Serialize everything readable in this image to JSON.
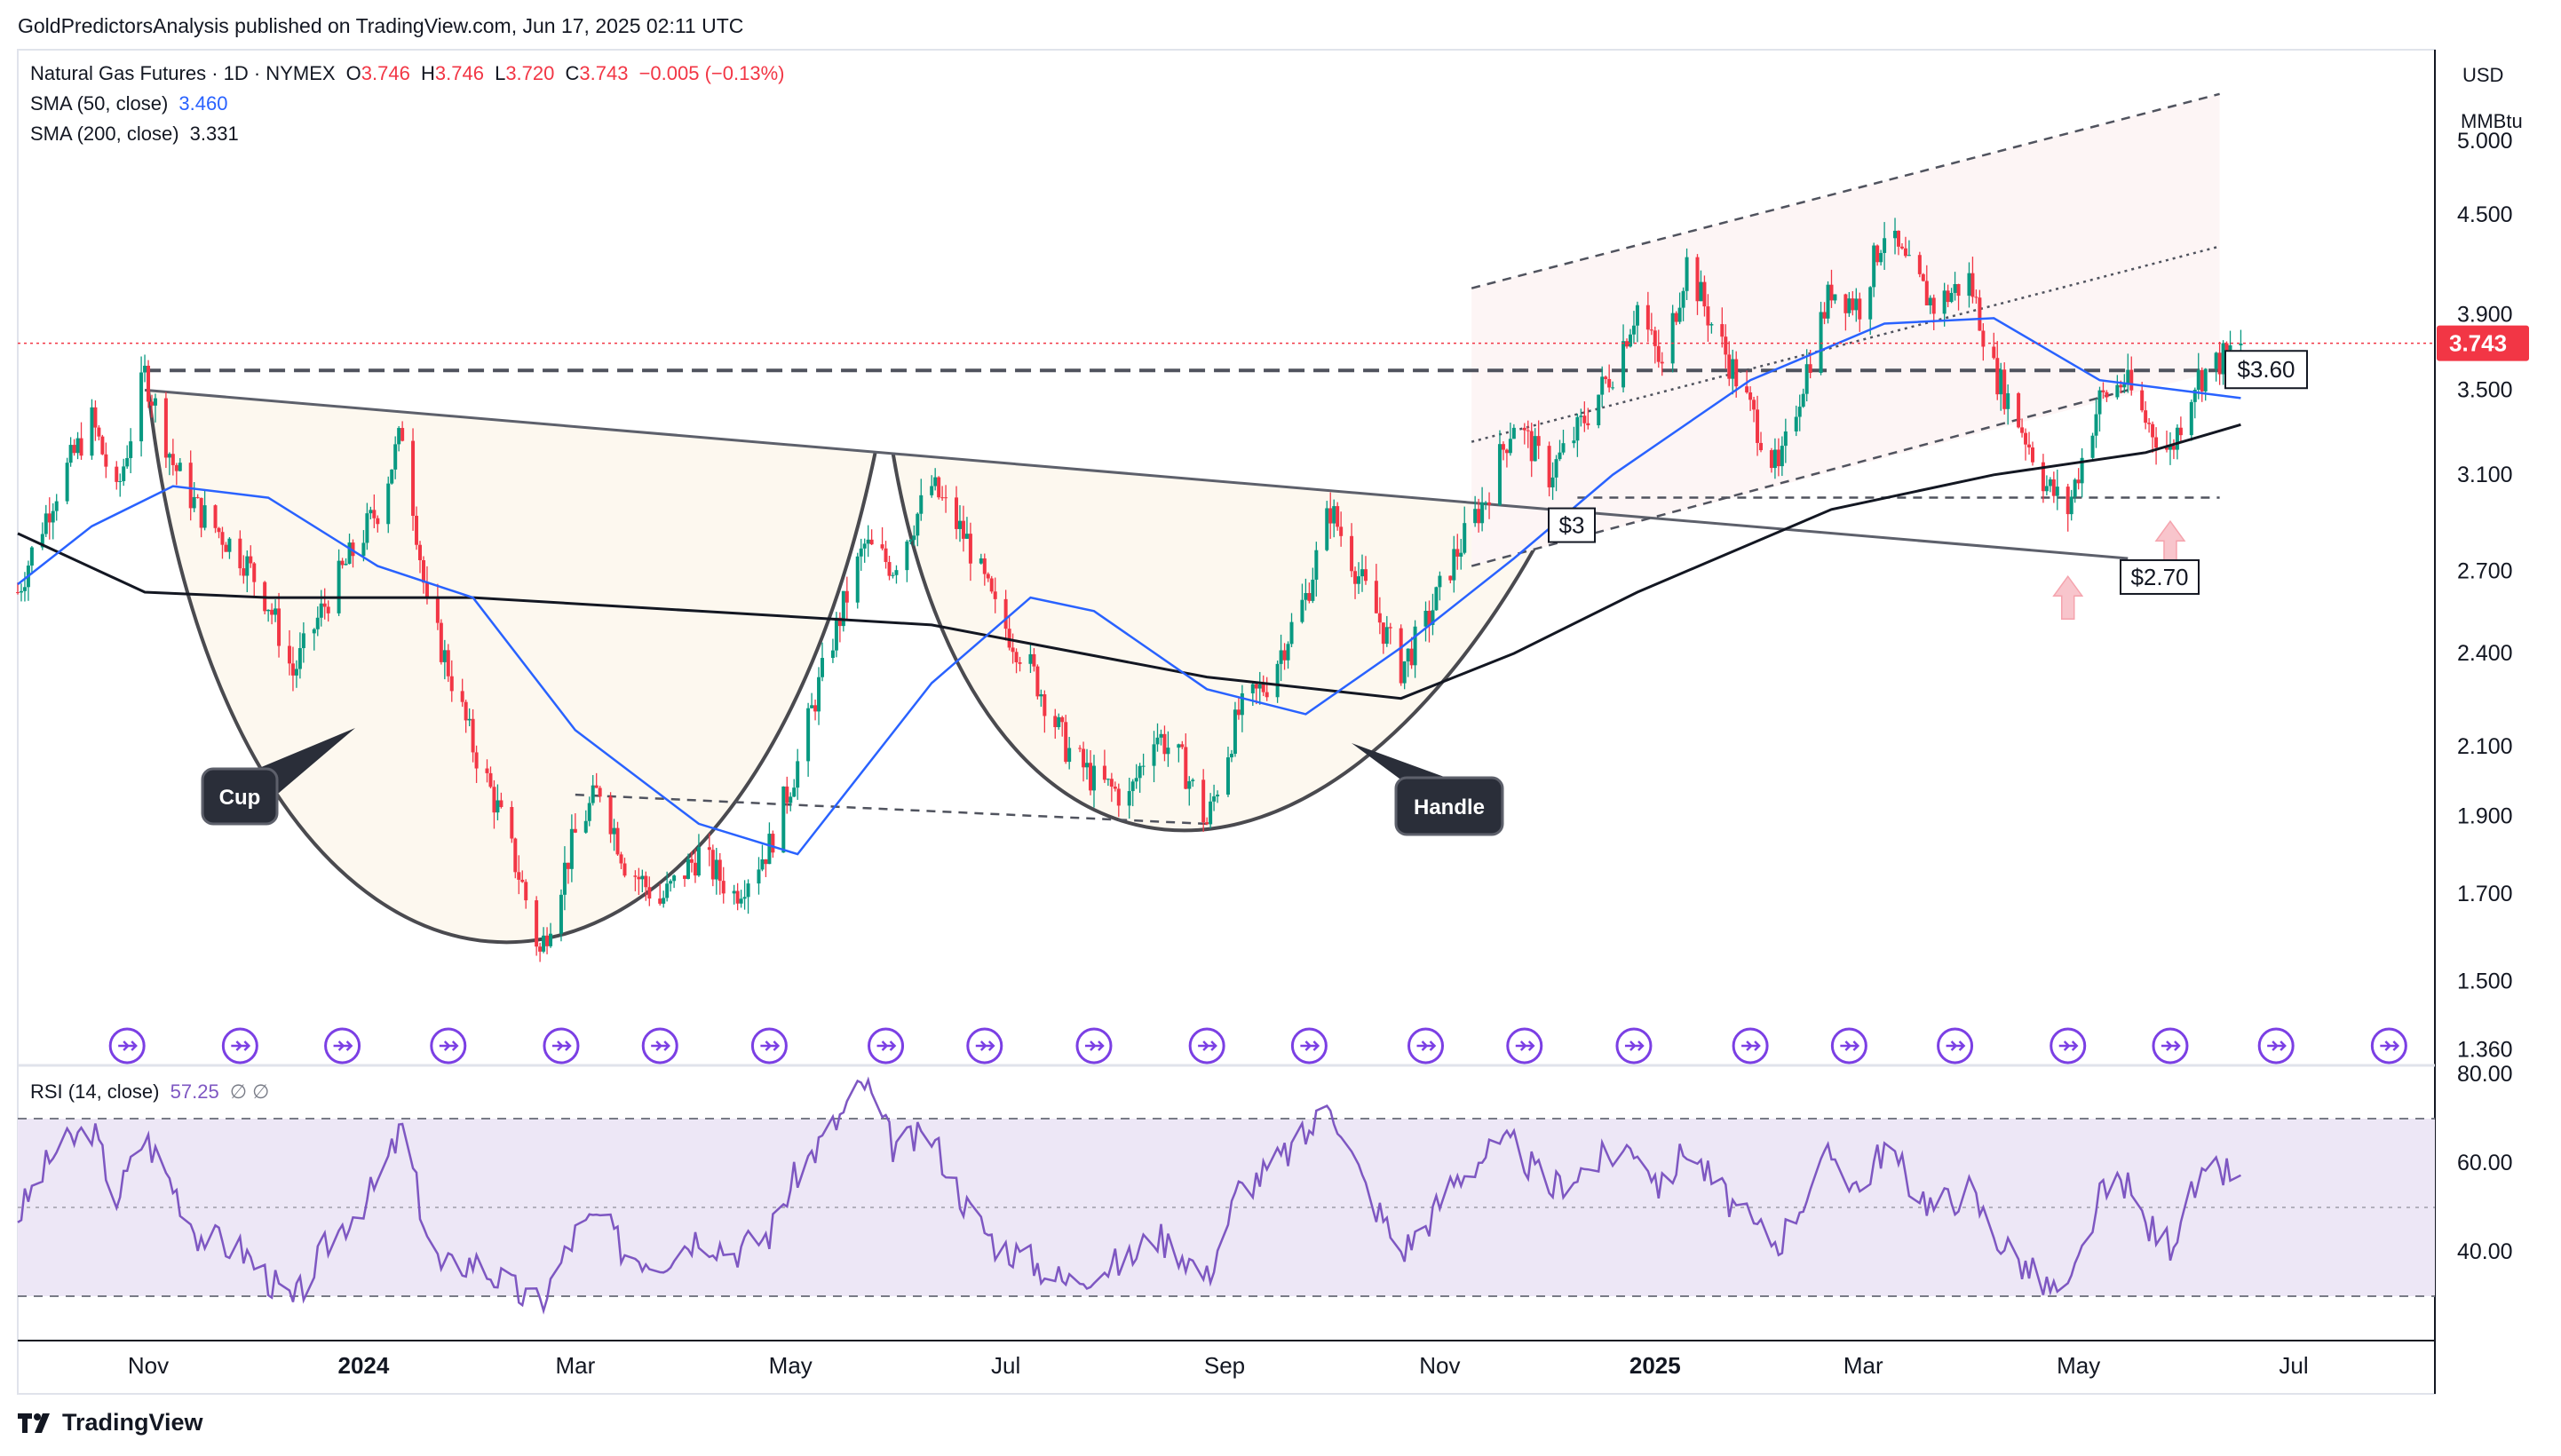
{
  "header": {
    "published": "GoldPredictorsAnalysis published on TradingView.com, Jun 17, 2025 02:11 UTC"
  },
  "legend": {
    "symbol": "Natural Gas Futures · 1D · NYMEX",
    "o_label": "O",
    "o": "3.746",
    "h_label": "H",
    "h": "3.746",
    "l_label": "L",
    "l": "3.720",
    "c_label": "C",
    "c": "3.743",
    "change": "−0.005 (−0.13%)",
    "sma50_label": "SMA (50, close)",
    "sma50": "3.460",
    "sma200_label": "SMA (200, close)",
    "sma200": "3.331",
    "rsi_label": "RSI (14, close)",
    "rsi": "57.25",
    "rsi_extra": "∅  ∅"
  },
  "price_axis": {
    "currency": "USD",
    "unit": "MMBtu",
    "ticks": [
      "5.000",
      "4.500",
      "3.900",
      "3.500",
      "3.100",
      "2.700",
      "2.400",
      "2.100",
      "1.900",
      "1.700",
      "1.500",
      "1.360"
    ],
    "last_price": "3.743"
  },
  "rsi_axis": {
    "ticks": [
      "80.00",
      "60.00",
      "40.00"
    ]
  },
  "time_axis": {
    "labels": [
      "Nov",
      "2024",
      "Mar",
      "May",
      "Jul",
      "Sep",
      "Nov",
      "2025",
      "Mar",
      "May",
      "Jul"
    ]
  },
  "annotations": {
    "cup": "Cup",
    "handle": "Handle",
    "level_360": "$3.60",
    "level_3": "$3",
    "level_270": "$2.70"
  },
  "footer": {
    "brand": "TradingView"
  },
  "colors": {
    "up": "#089981",
    "down": "#f23645",
    "sma50": "#2962ff",
    "sma200": "#131722",
    "rsi": "#7e57c2",
    "rsi_band": "#ede7f6",
    "last_price": "#f23645",
    "cup_fill": "#fdf8ef"
  },
  "chart_data": [
    {
      "type": "candlestick",
      "title": "Natural Gas Futures · 1D · NYMEX",
      "y_scale": "log",
      "ylim": [
        1.33,
        5.7
      ],
      "x_range": [
        "2023-09-25",
        "2025-08-10"
      ],
      "close_path": [
        [
          "2023-09-25",
          2.62
        ],
        [
          "2023-10-05",
          3.0
        ],
        [
          "2023-10-16",
          3.35
        ],
        [
          "2023-10-23",
          3.0
        ],
        [
          "2023-10-31",
          3.58
        ],
        [
          "2023-11-08",
          3.15
        ],
        [
          "2023-11-15",
          2.95
        ],
        [
          "2023-11-28",
          2.75
        ],
        [
          "2023-12-05",
          2.58
        ],
        [
          "2023-12-12",
          2.33
        ],
        [
          "2023-12-22",
          2.6
        ],
        [
          "2024-01-05",
          2.95
        ],
        [
          "2024-01-12",
          3.3
        ],
        [
          "2024-01-19",
          2.55
        ],
        [
          "2024-01-23",
          2.42
        ],
        [
          "2024-02-01",
          2.1
        ],
        [
          "2024-02-08",
          1.92
        ],
        [
          "2024-02-15",
          1.72
        ],
        [
          "2024-02-20",
          1.56
        ],
        [
          "2024-03-01",
          1.85
        ],
        [
          "2024-03-08",
          1.98
        ],
        [
          "2024-03-15",
          1.78
        ],
        [
          "2024-03-25",
          1.68
        ],
        [
          "2024-04-05",
          1.8
        ],
        [
          "2024-04-15",
          1.7
        ],
        [
          "2024-04-25",
          1.82
        ],
        [
          "2024-05-03",
          2.05
        ],
        [
          "2024-05-13",
          2.45
        ],
        [
          "2024-05-22",
          2.8
        ],
        [
          "2024-05-30",
          2.72
        ],
        [
          "2024-06-10",
          3.05
        ],
        [
          "2024-06-20",
          2.82
        ],
        [
          "2024-06-28",
          2.55
        ],
        [
          "2024-07-08",
          2.35
        ],
        [
          "2024-07-18",
          2.1
        ],
        [
          "2024-07-26",
          2.0
        ],
        [
          "2024-08-05",
          1.95
        ],
        [
          "2024-08-12",
          2.15
        ],
        [
          "2024-08-20",
          2.05
        ],
        [
          "2024-08-27",
          1.88
        ],
        [
          "2024-09-05",
          2.2
        ],
        [
          "2024-09-13",
          2.3
        ],
        [
          "2024-09-24",
          2.6
        ],
        [
          "2024-10-01",
          2.95
        ],
        [
          "2024-10-10",
          2.65
        ],
        [
          "2024-10-21",
          2.35
        ],
        [
          "2024-10-28",
          2.5
        ],
        [
          "2024-11-05",
          2.75
        ],
        [
          "2024-11-14",
          3.0
        ],
        [
          "2024-11-22",
          3.35
        ],
        [
          "2024-12-02",
          3.1
        ],
        [
          "2024-12-10",
          3.3
        ],
        [
          "2024-12-20",
          3.6
        ],
        [
          "2024-12-27",
          3.95
        ],
        [
          "2025-01-03",
          3.6
        ],
        [
          "2025-01-10",
          4.2
        ],
        [
          "2025-01-17",
          3.85
        ],
        [
          "2025-01-28",
          3.4
        ],
        [
          "2025-02-05",
          3.1
        ],
        [
          "2025-02-12",
          3.55
        ],
        [
          "2025-02-20",
          4.05
        ],
        [
          "2025-02-28",
          3.95
        ],
        [
          "2025-03-07",
          4.4
        ],
        [
          "2025-03-14",
          4.15
        ],
        [
          "2025-03-21",
          3.95
        ],
        [
          "2025-03-31",
          4.1
        ],
        [
          "2025-04-07",
          3.6
        ],
        [
          "2025-04-14",
          3.35
        ],
        [
          "2025-04-22",
          3.05
        ],
        [
          "2025-04-28",
          2.95
        ],
        [
          "2025-05-07",
          3.45
        ],
        [
          "2025-05-14",
          3.55
        ],
        [
          "2025-05-20",
          3.35
        ],
        [
          "2025-05-27",
          3.2
        ],
        [
          "2025-06-03",
          3.55
        ],
        [
          "2025-06-10",
          3.65
        ],
        [
          "2025-06-16",
          3.743
        ]
      ],
      "sma50_path": [
        [
          "2023-09-25",
          2.65
        ],
        [
          "2023-10-16",
          2.88
        ],
        [
          "2023-11-08",
          3.05
        ],
        [
          "2023-12-05",
          3.0
        ],
        [
          "2024-01-05",
          2.72
        ],
        [
          "2024-02-01",
          2.6
        ],
        [
          "2024-03-01",
          2.15
        ],
        [
          "2024-04-05",
          1.88
        ],
        [
          "2024-05-03",
          1.8
        ],
        [
          "2024-06-10",
          2.3
        ],
        [
          "2024-07-08",
          2.6
        ],
        [
          "2024-07-26",
          2.55
        ],
        [
          "2024-08-27",
          2.28
        ],
        [
          "2024-09-24",
          2.2
        ],
        [
          "2024-10-21",
          2.42
        ],
        [
          "2024-11-22",
          2.75
        ],
        [
          "2024-12-20",
          3.1
        ],
        [
          "2025-01-28",
          3.55
        ],
        [
          "2025-03-07",
          3.85
        ],
        [
          "2025-04-07",
          3.88
        ],
        [
          "2025-05-07",
          3.55
        ],
        [
          "2025-06-16",
          3.46
        ]
      ],
      "sma200_path": [
        [
          "2023-09-25",
          2.85
        ],
        [
          "2023-10-31",
          2.62
        ],
        [
          "2023-12-05",
          2.6
        ],
        [
          "2024-02-01",
          2.6
        ],
        [
          "2024-04-05",
          2.55
        ],
        [
          "2024-06-10",
          2.5
        ],
        [
          "2024-08-27",
          2.32
        ],
        [
          "2024-10-21",
          2.25
        ],
        [
          "2024-11-22",
          2.4
        ],
        [
          "2024-12-27",
          2.62
        ],
        [
          "2025-02-20",
          2.95
        ],
        [
          "2025-04-07",
          3.1
        ],
        [
          "2025-05-20",
          3.2
        ],
        [
          "2025-06-16",
          3.331
        ]
      ],
      "levels": {
        "resistance": 3.6,
        "support_dashed": 3.0,
        "trendline_end": 2.7
      }
    },
    {
      "type": "line",
      "title": "RSI (14, close)",
      "ylim": [
        20,
        82
      ],
      "bands": [
        30,
        70
      ],
      "path": [
        [
          "2023-09-25",
          48
        ],
        [
          "2023-10-05",
          62
        ],
        [
          "2023-10-16",
          68
        ],
        [
          "2023-10-23",
          52
        ],
        [
          "2023-10-31",
          66
        ],
        [
          "2023-11-08",
          55
        ],
        [
          "2023-11-15",
          44
        ],
        [
          "2023-11-28",
          40
        ],
        [
          "2023-12-05",
          34
        ],
        [
          "2023-12-12",
          28
        ],
        [
          "2023-12-22",
          42
        ],
        [
          "2024-01-05",
          55
        ],
        [
          "2024-01-12",
          68
        ],
        [
          "2024-01-19",
          44
        ],
        [
          "2024-01-23",
          36
        ],
        [
          "2024-02-01",
          38
        ],
        [
          "2024-02-08",
          34
        ],
        [
          "2024-02-15",
          30
        ],
        [
          "2024-02-20",
          28
        ],
        [
          "2024-03-01",
          44
        ],
        [
          "2024-03-08",
          48
        ],
        [
          "2024-03-15",
          40
        ],
        [
          "2024-03-25",
          38
        ],
        [
          "2024-04-05",
          44
        ],
        [
          "2024-04-15",
          40
        ],
        [
          "2024-04-25",
          44
        ],
        [
          "2024-05-03",
          58
        ],
        [
          "2024-05-13",
          68
        ],
        [
          "2024-05-22",
          78
        ],
        [
          "2024-05-30",
          64
        ],
        [
          "2024-06-10",
          66
        ],
        [
          "2024-06-20",
          50
        ],
        [
          "2024-06-28",
          42
        ],
        [
          "2024-07-08",
          38
        ],
        [
          "2024-07-18",
          33
        ],
        [
          "2024-07-26",
          36
        ],
        [
          "2024-08-05",
          38
        ],
        [
          "2024-08-12",
          44
        ],
        [
          "2024-08-20",
          40
        ],
        [
          "2024-08-27",
          34
        ],
        [
          "2024-09-05",
          54
        ],
        [
          "2024-09-13",
          58
        ],
        [
          "2024-09-24",
          66
        ],
        [
          "2024-10-01",
          74
        ],
        [
          "2024-10-10",
          56
        ],
        [
          "2024-10-21",
          40
        ],
        [
          "2024-10-28",
          46
        ],
        [
          "2024-11-05",
          56
        ],
        [
          "2024-11-14",
          62
        ],
        [
          "2024-11-22",
          64
        ],
        [
          "2024-12-02",
          54
        ],
        [
          "2024-12-10",
          58
        ],
        [
          "2024-12-20",
          62
        ],
        [
          "2024-12-27",
          64
        ],
        [
          "2025-01-03",
          54
        ],
        [
          "2025-01-10",
          64
        ],
        [
          "2025-01-17",
          56
        ],
        [
          "2025-01-28",
          46
        ],
        [
          "2025-02-05",
          42
        ],
        [
          "2025-02-12",
          52
        ],
        [
          "2025-02-20",
          62
        ],
        [
          "2025-02-28",
          54
        ],
        [
          "2025-03-07",
          64
        ],
        [
          "2025-03-14",
          56
        ],
        [
          "2025-03-21",
          50
        ],
        [
          "2025-03-31",
          54
        ],
        [
          "2025-04-07",
          44
        ],
        [
          "2025-04-14",
          38
        ],
        [
          "2025-04-22",
          32
        ],
        [
          "2025-04-28",
          30
        ],
        [
          "2025-05-07",
          52
        ],
        [
          "2025-05-14",
          56
        ],
        [
          "2025-05-20",
          46
        ],
        [
          "2025-05-27",
          42
        ],
        [
          "2025-06-03",
          54
        ],
        [
          "2025-06-10",
          58
        ],
        [
          "2025-06-16",
          57.25
        ]
      ]
    }
  ]
}
